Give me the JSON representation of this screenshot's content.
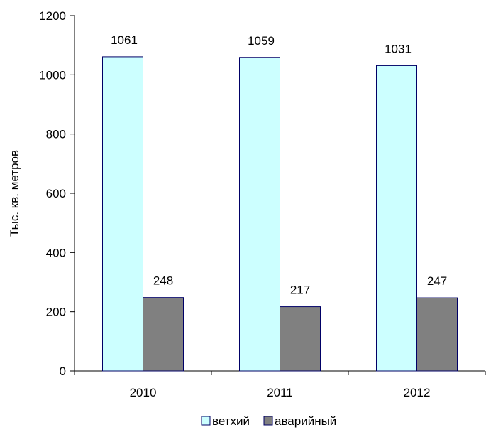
{
  "chart_data": {
    "type": "bar",
    "title": "",
    "xlabel": "",
    "ylabel": "Тыс. кв. метров",
    "categories": [
      "2010",
      "2011",
      "2012"
    ],
    "ylim": [
      0,
      1200
    ],
    "yticks": [
      0,
      200,
      400,
      600,
      800,
      1000,
      1200
    ],
    "grid": false,
    "legend_position": "bottom",
    "series": [
      {
        "name": "ветхий",
        "values": [
          1061,
          1059,
          1031
        ],
        "color": "#ccffff"
      },
      {
        "name": "аварийный",
        "values": [
          248,
          217,
          247
        ],
        "color": "#808080"
      }
    ],
    "data_labels": true
  }
}
